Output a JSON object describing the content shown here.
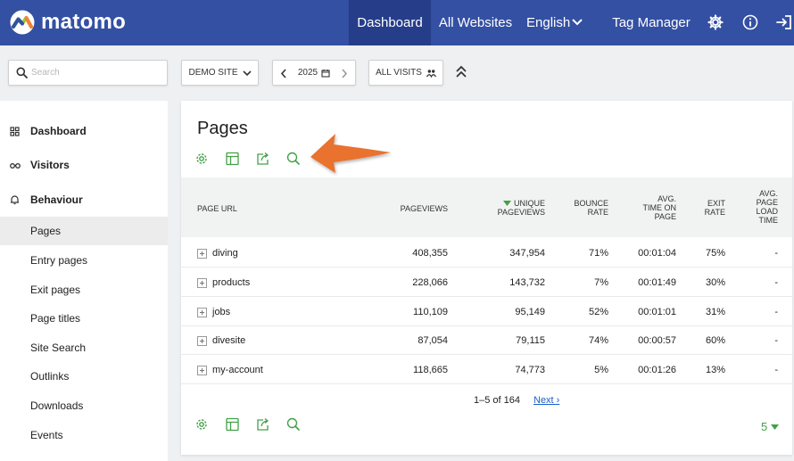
{
  "app": {
    "name": "matomo"
  },
  "topnav": {
    "dashboard": "Dashboard",
    "all_websites": "All Websites",
    "language": "English",
    "tag_manager": "Tag Manager"
  },
  "toolbar": {
    "search_placeholder": "Search",
    "site": "DEMO SITE",
    "period": "2025",
    "segment": "ALL VISITS"
  },
  "sidebar": {
    "categories": [
      {
        "label": "Dashboard",
        "icon": "grid-icon"
      },
      {
        "label": "Visitors",
        "icon": "binoculars-icon"
      },
      {
        "label": "Behaviour",
        "icon": "bell-icon"
      }
    ],
    "items": [
      {
        "label": "Pages",
        "active": true
      },
      {
        "label": "Entry pages"
      },
      {
        "label": "Exit pages"
      },
      {
        "label": "Page titles"
      },
      {
        "label": "Site Search"
      },
      {
        "label": "Outlinks"
      },
      {
        "label": "Downloads"
      },
      {
        "label": "Events"
      }
    ]
  },
  "report": {
    "title": "Pages",
    "columns": {
      "page_url": "PAGE URL",
      "pageviews": "PAGEVIEWS",
      "unique_pageviews": "UNIQUE PAGEVIEWS",
      "bounce_rate": "BOUNCE RATE",
      "avg_time": "AVG. TIME ON PAGE",
      "exit_rate": "EXIT RATE",
      "avg_load": "AVG. PAGE LOAD TIME"
    },
    "rows": [
      {
        "url": "diving",
        "pageviews": "408,355",
        "unique": "347,954",
        "bounce": "71%",
        "time": "00:01:04",
        "exit": "75%",
        "load": "-"
      },
      {
        "url": "products",
        "pageviews": "228,066",
        "unique": "143,732",
        "bounce": "7%",
        "time": "00:01:49",
        "exit": "30%",
        "load": "-"
      },
      {
        "url": "jobs",
        "pageviews": "110,109",
        "unique": "95,149",
        "bounce": "52%",
        "time": "00:01:01",
        "exit": "31%",
        "load": "-"
      },
      {
        "url": "divesite",
        "pageviews": "87,054",
        "unique": "79,115",
        "bounce": "74%",
        "time": "00:00:57",
        "exit": "60%",
        "load": "-"
      },
      {
        "url": "my-account",
        "pageviews": "118,665",
        "unique": "74,773",
        "bounce": "5%",
        "time": "00:01:26",
        "exit": "13%",
        "load": "-"
      }
    ],
    "pagination": "1–5 of 164",
    "next": "Next ›",
    "limit": "5",
    "sort_column": "unique_pageviews"
  },
  "colors": {
    "nav": "#3450a3",
    "nav_active": "#263e8a",
    "accent_green": "#43a047",
    "arrow": "#e8722f",
    "link": "#1a5fc9"
  }
}
